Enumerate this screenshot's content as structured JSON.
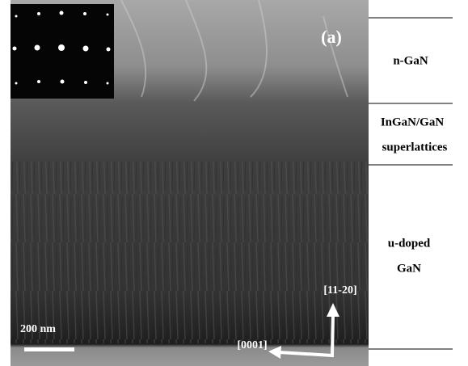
{
  "image": {
    "panel_label": "(a)",
    "scale_bar": "200 nm",
    "direction_up": "[11-20]",
    "direction_left": "[0001]"
  },
  "layers": [
    {
      "label_lines": [
        "n-GaN"
      ]
    },
    {
      "label_lines": [
        "InGaN/GaN",
        "superlattices"
      ]
    },
    {
      "label_lines": [
        "u-doped",
        "GaN"
      ]
    }
  ]
}
